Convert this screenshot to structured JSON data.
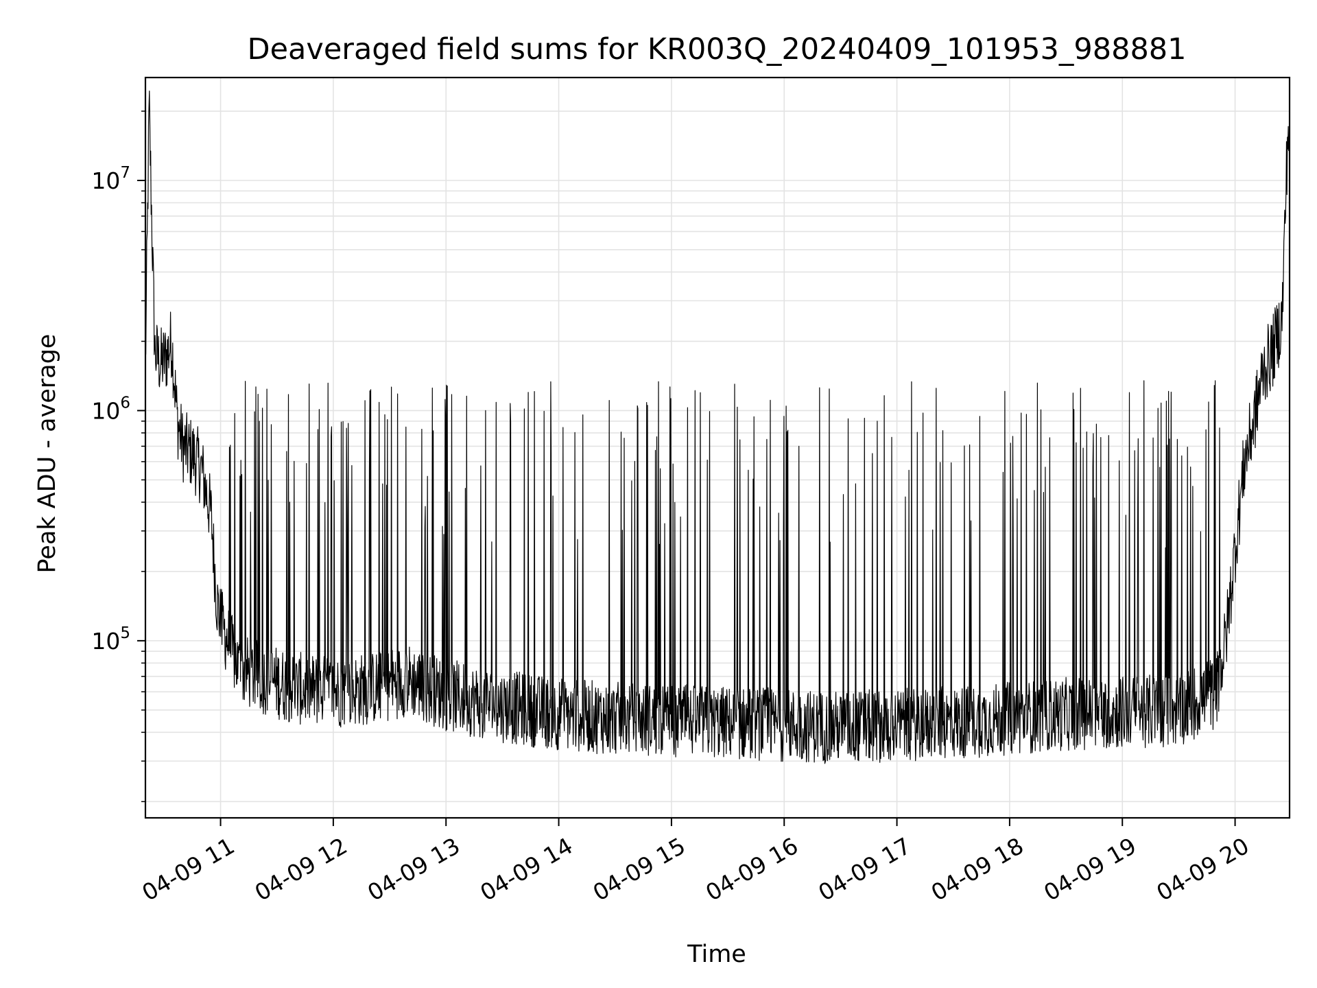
{
  "chart_data": {
    "type": "line",
    "title": "Deaveraged field sums for KR003Q_20240409_101953_988881",
    "xlabel": "Time",
    "ylabel": "Peak ADU - average",
    "yscale": "log",
    "grid": true,
    "legend": "none",
    "line_color": "#000000",
    "xlim": [
      "2024-04-09 10:20",
      "2024-04-09 20:29"
    ],
    "ylim": [
      17000,
      28000000
    ],
    "x_ticks": [
      {
        "value": "2024-04-09 11:00",
        "label": "04-09 11"
      },
      {
        "value": "2024-04-09 12:00",
        "label": "04-09 12"
      },
      {
        "value": "2024-04-09 13:00",
        "label": "04-09 13"
      },
      {
        "value": "2024-04-09 14:00",
        "label": "04-09 14"
      },
      {
        "value": "2024-04-09 15:00",
        "label": "04-09 15"
      },
      {
        "value": "2024-04-09 16:00",
        "label": "04-09 16"
      },
      {
        "value": "2024-04-09 17:00",
        "label": "04-09 17"
      },
      {
        "value": "2024-04-09 18:00",
        "label": "04-09 18"
      },
      {
        "value": "2024-04-09 19:00",
        "label": "04-09 19"
      },
      {
        "value": "2024-04-09 20:00",
        "label": "04-09 20"
      }
    ],
    "y_ticks": [
      {
        "value": 100000,
        "base": "10",
        "exp": "5"
      },
      {
        "value": 1000000,
        "base": "10",
        "exp": "6"
      },
      {
        "value": 10000000,
        "base": "10",
        "exp": "7"
      }
    ],
    "series": [
      {
        "x": [
          "2024-04-09 10:20",
          "2024-04-09 10:22",
          "2024-04-09 10:25",
          "2024-04-09 10:28",
          "2024-04-09 10:31",
          "2024-04-09 10:34",
          "2024-04-09 10:37",
          "2024-04-09 10:40",
          "2024-04-09 10:45",
          "2024-04-09 10:50",
          "2024-04-09 10:55",
          "2024-04-09 10:58",
          "2024-04-09 11:00",
          "2024-04-09 11:10",
          "2024-04-09 11:20",
          "2024-04-09 11:40",
          "2024-04-09 12:00",
          "2024-04-09 12:20",
          "2024-04-09 12:40",
          "2024-04-09 13:00",
          "2024-04-09 13:30",
          "2024-04-09 14:00",
          "2024-04-09 14:30",
          "2024-04-09 15:00",
          "2024-04-09 15:30",
          "2024-04-09 16:00",
          "2024-04-09 16:30",
          "2024-04-09 17:00",
          "2024-04-09 17:30",
          "2024-04-09 18:00",
          "2024-04-09 18:30",
          "2024-04-09 19:00",
          "2024-04-09 19:30",
          "2024-04-09 19:50",
          "2024-04-09 19:55",
          "2024-04-09 20:00",
          "2024-04-09 20:05",
          "2024-04-09 20:10",
          "2024-04-09 20:15",
          "2024-04-09 20:20",
          "2024-04-09 20:25",
          "2024-04-09 20:28"
        ],
        "y": [
          1500000,
          21000000,
          1800000,
          1600000,
          1700000,
          2000000,
          900000,
          700000,
          650000,
          550000,
          350000,
          150000,
          120000,
          75000,
          70000,
          62000,
          60000,
          62000,
          68000,
          58000,
          52000,
          48000,
          46000,
          45000,
          44000,
          43000,
          42000,
          43000,
          44000,
          46000,
          48000,
          49000,
          50000,
          60000,
          100000,
          250000,
          600000,
          900000,
          1500000,
          1800000,
          2500000,
          16000000
        ]
      }
    ]
  }
}
